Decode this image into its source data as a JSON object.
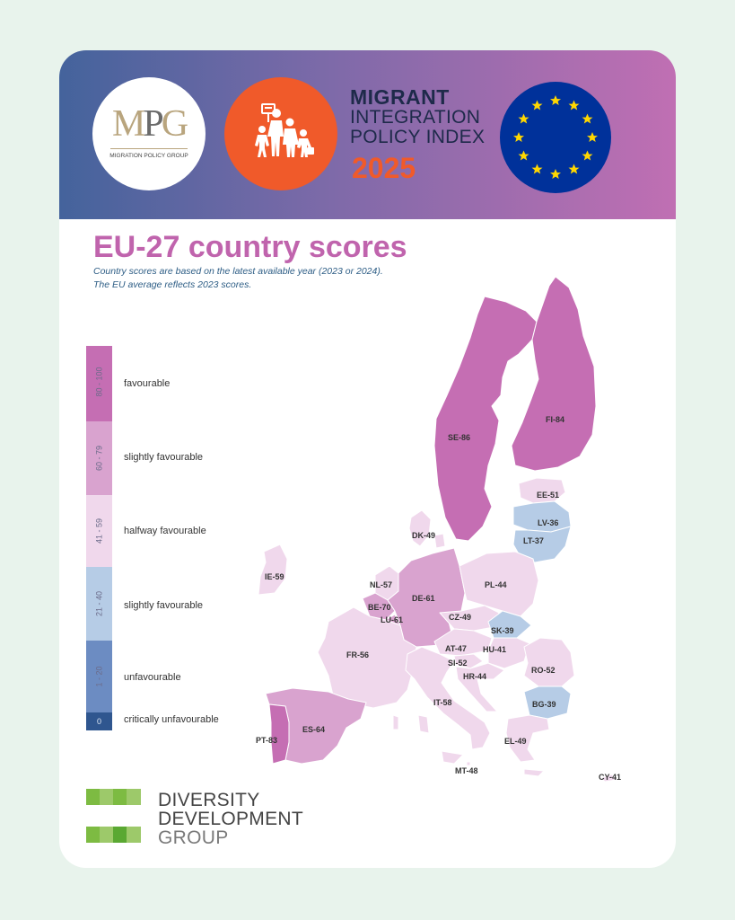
{
  "header": {
    "mpg_logo_text": "MPG",
    "mpg_caption": "MIGRATION POLICY GROUP",
    "title_line1": "MIGRANT",
    "title_line2": "INTEGRATION",
    "title_line3": "POLICY INDEX",
    "year": "2025"
  },
  "heading": "EU-27 country scores",
  "subtitle_line1": "Country scores are based on the latest available year (2023 or 2024).",
  "subtitle_line2": "The EU average reflects 2023 scores.",
  "legend": [
    {
      "range": "80 - 100",
      "label": "favourable",
      "color": "#c56eb3"
    },
    {
      "range": "60 - 79",
      "label": "slightly favourable",
      "color": "#d9a3cf"
    },
    {
      "range": "41 - 59",
      "label": "halfway favourable",
      "color": "#f0d8ec"
    },
    {
      "range": "21 - 40",
      "label": "slightly favourable",
      "color": "#b6cce6"
    },
    {
      "range": "1 - 20",
      "label": "unfavourable",
      "color": "#6c8cc2"
    },
    {
      "range": "0",
      "label": "critically unfavourable",
      "color": "#2f568f"
    }
  ],
  "countries": [
    {
      "code": "SE",
      "score": 86,
      "label": "SE-86"
    },
    {
      "code": "FI",
      "score": 84,
      "label": "FI-84"
    },
    {
      "code": "EE",
      "score": 51,
      "label": "EE-51"
    },
    {
      "code": "LV",
      "score": 36,
      "label": "LV-36"
    },
    {
      "code": "LT",
      "score": 37,
      "label": "LT-37"
    },
    {
      "code": "DK",
      "score": 49,
      "label": "DK-49"
    },
    {
      "code": "IE",
      "score": 59,
      "label": "IE-59"
    },
    {
      "code": "NL",
      "score": 57,
      "label": "NL-57"
    },
    {
      "code": "DE",
      "score": 61,
      "label": "DE-61"
    },
    {
      "code": "PL",
      "score": 44,
      "label": "PL-44"
    },
    {
      "code": "BE",
      "score": 70,
      "label": "BE-70"
    },
    {
      "code": "LU",
      "score": 61,
      "label": "LU-61"
    },
    {
      "code": "CZ",
      "score": 49,
      "label": "CZ-49"
    },
    {
      "code": "SK",
      "score": 39,
      "label": "SK-39"
    },
    {
      "code": "FR",
      "score": 56,
      "label": "FR-56"
    },
    {
      "code": "AT",
      "score": 47,
      "label": "AT-47"
    },
    {
      "code": "HU",
      "score": 41,
      "label": "HU-41"
    },
    {
      "code": "SI",
      "score": 52,
      "label": "SI-52"
    },
    {
      "code": "HR",
      "score": 44,
      "label": "HR-44"
    },
    {
      "code": "RO",
      "score": 52,
      "label": "RO-52"
    },
    {
      "code": "BG",
      "score": 39,
      "label": "BG-39"
    },
    {
      "code": "IT",
      "score": 58,
      "label": "IT-58"
    },
    {
      "code": "ES",
      "score": 64,
      "label": "ES-64"
    },
    {
      "code": "PT",
      "score": 83,
      "label": "PT-83"
    },
    {
      "code": "EL",
      "score": 49,
      "label": "EL-49"
    },
    {
      "code": "MT",
      "score": 48,
      "label": "MT-48"
    },
    {
      "code": "CY",
      "score": 41,
      "label": "CY-41"
    }
  ],
  "footer": {
    "line1": "DIVERSITY",
    "line2": "DEVELOPMENT",
    "line3": "GROUP"
  }
}
